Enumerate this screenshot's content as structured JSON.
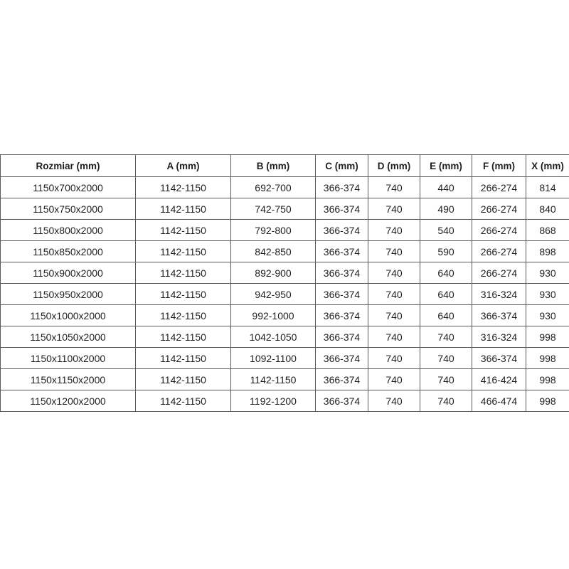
{
  "table": {
    "headers": [
      "Rozmiar (mm)",
      "A (mm)",
      "B (mm)",
      "C (mm)",
      "D (mm)",
      "E (mm)",
      "F (mm)",
      "X (mm)"
    ],
    "rows": [
      [
        "1150x700x2000",
        "1142-1150",
        "692-700",
        "366-374",
        "740",
        "440",
        "266-274",
        "814"
      ],
      [
        "1150x750x2000",
        "1142-1150",
        "742-750",
        "366-374",
        "740",
        "490",
        "266-274",
        "840"
      ],
      [
        "1150x800x2000",
        "1142-1150",
        "792-800",
        "366-374",
        "740",
        "540",
        "266-274",
        "868"
      ],
      [
        "1150x850x2000",
        "1142-1150",
        "842-850",
        "366-374",
        "740",
        "590",
        "266-274",
        "898"
      ],
      [
        "1150x900x2000",
        "1142-1150",
        "892-900",
        "366-374",
        "740",
        "640",
        "266-274",
        "930"
      ],
      [
        "1150x950x2000",
        "1142-1150",
        "942-950",
        "366-374",
        "740",
        "640",
        "316-324",
        "930"
      ],
      [
        "1150x1000x2000",
        "1142-1150",
        "992-1000",
        "366-374",
        "740",
        "640",
        "366-374",
        "930"
      ],
      [
        "1150x1050x2000",
        "1142-1150",
        "1042-1050",
        "366-374",
        "740",
        "740",
        "316-324",
        "998"
      ],
      [
        "1150x1100x2000",
        "1142-1150",
        "1092-1100",
        "366-374",
        "740",
        "740",
        "366-374",
        "998"
      ],
      [
        "1150x1150x2000",
        "1142-1150",
        "1142-1150",
        "366-374",
        "740",
        "740",
        "416-424",
        "998"
      ],
      [
        "1150x1200x2000",
        "1142-1150",
        "1192-1200",
        "366-374",
        "740",
        "740",
        "466-474",
        "998"
      ]
    ],
    "colors": {
      "border": "#595959",
      "text": "#1f1f1f",
      "background": "#ffffff"
    }
  }
}
